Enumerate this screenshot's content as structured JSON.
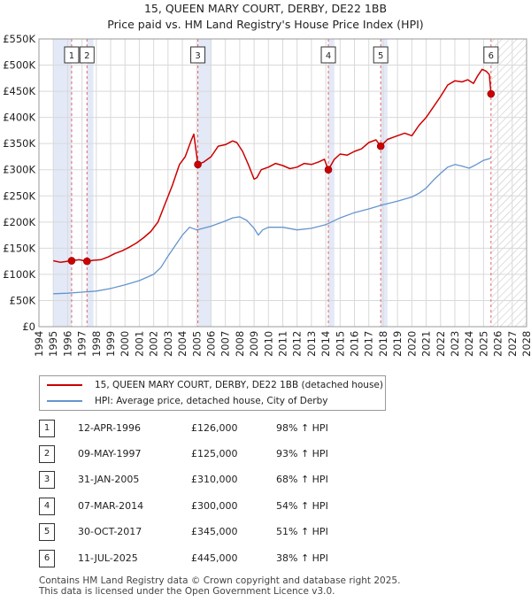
{
  "chart_data": {
    "type": "line",
    "title": "15, QUEEN MARY COURT, DERBY, DE22 1BB",
    "subtitle": "Price paid vs. HM Land Registry's House Price Index (HPI)",
    "xlim": [
      1994,
      2028
    ],
    "ylim": [
      0,
      550000
    ],
    "yticks": [
      0,
      50000,
      100000,
      150000,
      200000,
      250000,
      300000,
      350000,
      400000,
      450000,
      500000,
      550000
    ],
    "ytick_labels": [
      "£0",
      "£50K",
      "£100K",
      "£150K",
      "£200K",
      "£250K",
      "£300K",
      "£350K",
      "£400K",
      "£450K",
      "£500K",
      "£550K"
    ],
    "xticks": [
      "1994",
      "1995",
      "1996",
      "1997",
      "1998",
      "1999",
      "2000",
      "2001",
      "2002",
      "2003",
      "2004",
      "2005",
      "2006",
      "2007",
      "2008",
      "2009",
      "2010",
      "2011",
      "2012",
      "2013",
      "2014",
      "2015",
      "2016",
      "2017",
      "2018",
      "2019",
      "2020",
      "2021",
      "2022",
      "2023",
      "2024",
      "2025",
      "2026",
      "2027",
      "2028"
    ],
    "series": [
      {
        "name": "15, QUEEN MARY COURT, DERBY, DE22 1BB (detached house)",
        "color": "#cc0000",
        "x": [
          1995.0,
          1995.5,
          1996.28,
          1996.8,
          1997.35,
          1997.8,
          1998.3,
          1998.8,
          1999.3,
          1999.8,
          2000.3,
          2000.8,
          2001.3,
          2001.8,
          2002.3,
          2002.8,
          2003.3,
          2003.8,
          2004.2,
          2004.6,
          2004.8,
          2005.08,
          2005.5,
          2006.0,
          2006.5,
          2007.0,
          2007.5,
          2007.8,
          2008.2,
          2008.6,
          2009.0,
          2009.2,
          2009.5,
          2010.0,
          2010.5,
          2011.0,
          2011.5,
          2012.0,
          2012.5,
          2013.0,
          2013.5,
          2013.9,
          2014.18,
          2014.6,
          2015.0,
          2015.5,
          2016.0,
          2016.5,
          2017.0,
          2017.5,
          2017.83,
          2018.3,
          2019.0,
          2019.5,
          2020.0,
          2020.5,
          2021.0,
          2021.5,
          2022.0,
          2022.5,
          2023.0,
          2023.5,
          2023.9,
          2024.3,
          2024.6,
          2024.9,
          2025.2,
          2025.4,
          2025.52
        ],
        "values": [
          126000,
          123000,
          126000,
          128000,
          125000,
          127000,
          128000,
          133000,
          140000,
          145000,
          152000,
          160000,
          170000,
          182000,
          200000,
          235000,
          270000,
          310000,
          325000,
          355000,
          368000,
          310000,
          315000,
          325000,
          345000,
          348000,
          355000,
          352000,
          335000,
          310000,
          282000,
          285000,
          300000,
          305000,
          312000,
          308000,
          302000,
          305000,
          312000,
          310000,
          315000,
          320000,
          300000,
          320000,
          330000,
          328000,
          335000,
          340000,
          352000,
          357000,
          345000,
          358000,
          365000,
          370000,
          365000,
          385000,
          400000,
          420000,
          440000,
          462000,
          470000,
          468000,
          472000,
          465000,
          480000,
          492000,
          488000,
          482000,
          445000
        ]
      },
      {
        "name": "HPI: Average price, detached house, City of Derby",
        "color": "#6495cd",
        "x": [
          1995.0,
          1996.0,
          1997.0,
          1998.0,
          1999.0,
          2000.0,
          2001.0,
          2002.0,
          2002.5,
          2003.0,
          2003.5,
          2004.0,
          2004.5,
          2005.0,
          2006.0,
          2007.0,
          2007.5,
          2008.0,
          2008.5,
          2009.0,
          2009.3,
          2009.6,
          2010.0,
          2011.0,
          2012.0,
          2013.0,
          2014.0,
          2015.0,
          2016.0,
          2017.0,
          2018.0,
          2019.0,
          2020.0,
          2020.5,
          2021.0,
          2021.5,
          2022.0,
          2022.5,
          2023.0,
          2023.5,
          2024.0,
          2024.5,
          2025.0,
          2025.5
        ],
        "values": [
          63000,
          64000,
          66000,
          68000,
          73000,
          80000,
          88000,
          100000,
          113000,
          135000,
          155000,
          175000,
          190000,
          185000,
          192000,
          202000,
          208000,
          210000,
          203000,
          188000,
          175000,
          185000,
          190000,
          190000,
          185000,
          188000,
          195000,
          208000,
          218000,
          225000,
          233000,
          240000,
          248000,
          255000,
          265000,
          280000,
          293000,
          305000,
          310000,
          307000,
          303000,
          310000,
          318000,
          322000
        ]
      }
    ],
    "sales": [
      {
        "label": "1",
        "x": 1996.28,
        "value": 126000
      },
      {
        "label": "2",
        "x": 1997.35,
        "value": 125000
      },
      {
        "label": "3",
        "x": 2005.08,
        "value": 310000
      },
      {
        "label": "4",
        "x": 2014.18,
        "value": 300000
      },
      {
        "label": "5",
        "x": 2017.83,
        "value": 345000
      },
      {
        "label": "6",
        "x": 2025.52,
        "value": 445000
      }
    ],
    "shaded_periods": [
      [
        1995.0,
        1996.28
      ],
      [
        1997.35,
        1997.8
      ],
      [
        2005.08,
        2006.0
      ],
      [
        2014.18,
        2014.6
      ],
      [
        2017.83,
        2018.3
      ]
    ],
    "future_hatch_from": 2025.52
  },
  "legend": [
    {
      "label": "15, QUEEN MARY COURT, DERBY, DE22 1BB (detached house)",
      "color": "#cc0000"
    },
    {
      "label": "HPI: Average price, detached house, City of Derby",
      "color": "#6495cd"
    }
  ],
  "transactions": [
    {
      "num": "1",
      "date": "12-APR-1996",
      "price": "£126,000",
      "hpi": "98% ↑ HPI"
    },
    {
      "num": "2",
      "date": "09-MAY-1997",
      "price": "£125,000",
      "hpi": "93% ↑ HPI"
    },
    {
      "num": "3",
      "date": "31-JAN-2005",
      "price": "£310,000",
      "hpi": "68% ↑ HPI"
    },
    {
      "num": "4",
      "date": "07-MAR-2014",
      "price": "£300,000",
      "hpi": "54% ↑ HPI"
    },
    {
      "num": "5",
      "date": "30-OCT-2017",
      "price": "£345,000",
      "hpi": "51% ↑ HPI"
    },
    {
      "num": "6",
      "date": "11-JUL-2025",
      "price": "£445,000",
      "hpi": "38% ↑ HPI"
    }
  ],
  "footer": {
    "line1": "Contains HM Land Registry data © Crown copyright and database right 2025.",
    "line2": "This data is licensed under the Open Government Licence v3.0."
  }
}
